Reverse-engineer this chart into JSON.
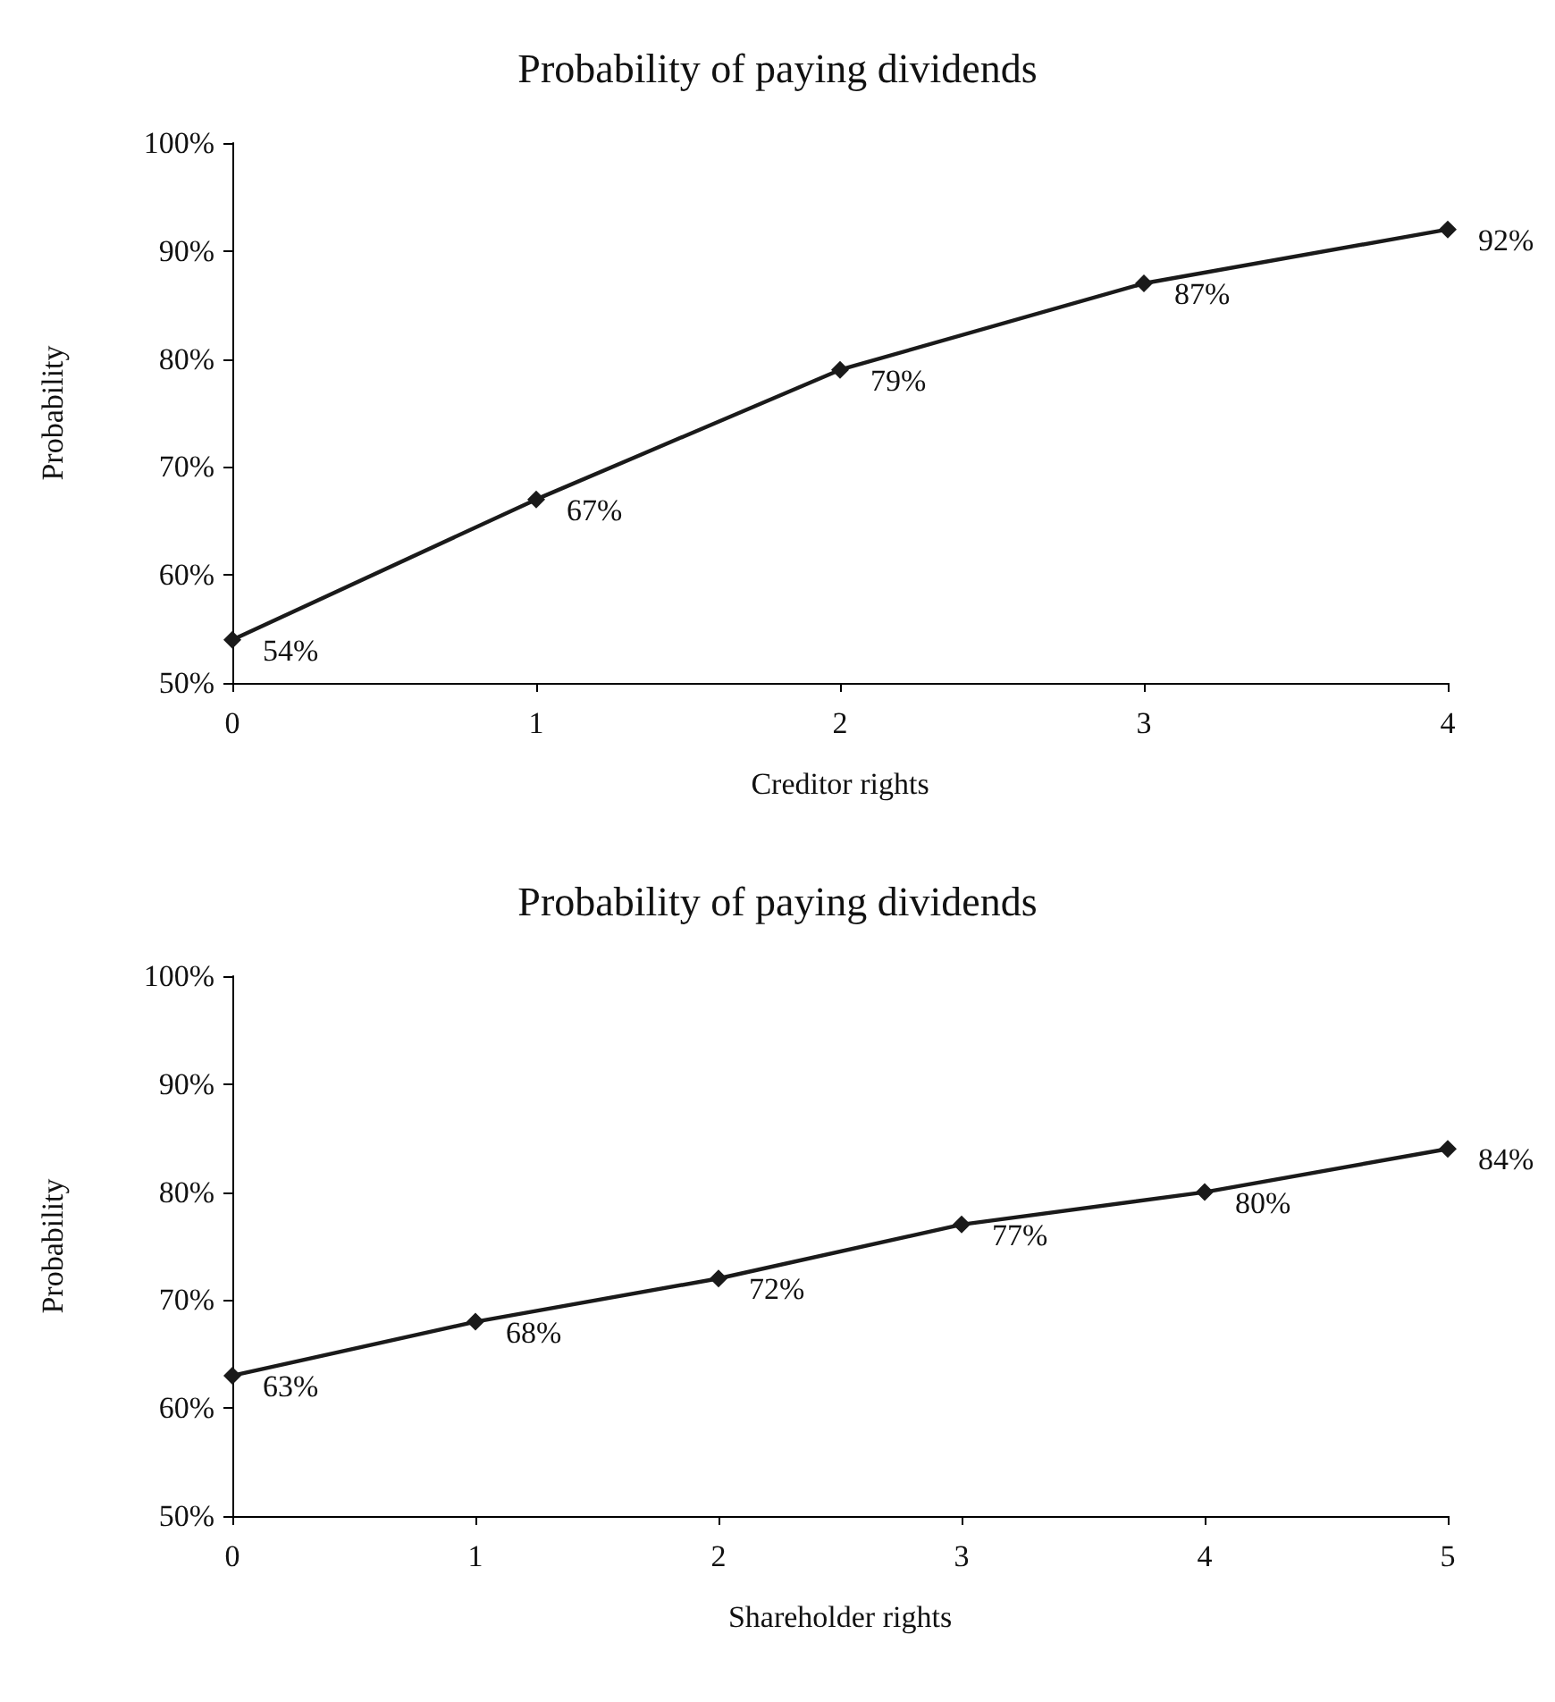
{
  "chart_data": [
    {
      "type": "line",
      "title": "Probability of paying dividends",
      "xlabel": "Creditor rights",
      "ylabel": "Probability",
      "x": [
        0,
        1,
        2,
        3,
        4
      ],
      "xlim": [
        0,
        4
      ],
      "xticks": [
        0,
        1,
        2,
        3,
        4
      ],
      "ylim": [
        50,
        100
      ],
      "yticks": [
        {
          "value": 50,
          "label": "50%"
        },
        {
          "value": 60,
          "label": "60%"
        },
        {
          "value": 70,
          "label": "70%"
        },
        {
          "value": 80,
          "label": "80%"
        },
        {
          "value": 90,
          "label": "90%"
        },
        {
          "value": 100,
          "label": "100%"
        }
      ],
      "series": [
        {
          "color": "#1a1a1a",
          "values": [
            54,
            67,
            79,
            87,
            92
          ],
          "value_labels": [
            "54%",
            "67%",
            "79%",
            "87%",
            "92%"
          ]
        }
      ],
      "marker": "diamond",
      "line_style": "solid",
      "grid": false
    },
    {
      "type": "line",
      "title": "Probability of paying dividends",
      "xlabel": "Shareholder rights",
      "ylabel": "Probability",
      "x": [
        0,
        1,
        2,
        3,
        4,
        5
      ],
      "xlim": [
        0,
        5
      ],
      "xticks": [
        0,
        1,
        2,
        3,
        4,
        5
      ],
      "ylim": [
        50,
        100
      ],
      "yticks": [
        {
          "value": 50,
          "label": "50%"
        },
        {
          "value": 60,
          "label": "60%"
        },
        {
          "value": 70,
          "label": "70%"
        },
        {
          "value": 80,
          "label": "80%"
        },
        {
          "value": 90,
          "label": "90%"
        },
        {
          "value": 100,
          "label": "100%"
        }
      ],
      "series": [
        {
          "color": "#1a1a1a",
          "values": [
            63,
            68,
            72,
            77,
            80,
            84
          ],
          "value_labels": [
            "63%",
            "68%",
            "72%",
            "77%",
            "80%",
            "84%"
          ]
        }
      ],
      "marker": "diamond",
      "line_style": "solid",
      "grid": false
    }
  ]
}
